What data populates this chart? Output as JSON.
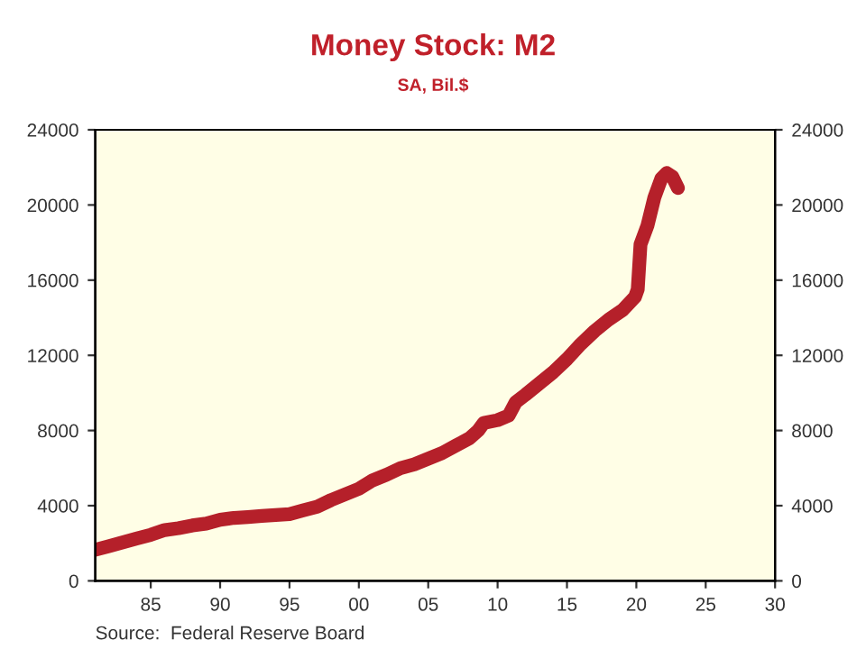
{
  "chart_data": {
    "type": "line",
    "title": "Money Stock: M2",
    "subtitle": "SA, Bil.$",
    "x": [
      1981,
      1982,
      1983,
      1984,
      1985,
      1986,
      1987,
      1988,
      1989,
      1990,
      1991,
      1992,
      1993,
      1994,
      1995,
      1996,
      1997,
      1998,
      1999,
      2000,
      2001,
      2002,
      2003,
      2004,
      2005,
      2006,
      2007,
      2008,
      2008.6,
      2009,
      2010,
      2010.8,
      2011.3,
      2012,
      2013,
      2014,
      2015,
      2016,
      2017,
      2018,
      2019,
      2019.9,
      2020.1,
      2020.3,
      2020.8,
      2021.3,
      2021.8,
      2022.2,
      2022.6,
      2023.0
    ],
    "series": [
      {
        "color": "#b5202a",
        "values": [
          1650,
          1850,
          2050,
          2250,
          2450,
          2700,
          2800,
          2950,
          3050,
          3250,
          3350,
          3400,
          3450,
          3500,
          3550,
          3750,
          3950,
          4300,
          4600,
          4900,
          5350,
          5650,
          6000,
          6200,
          6500,
          6800,
          7200,
          7600,
          8000,
          8400,
          8550,
          8800,
          9500,
          9900,
          10500,
          11100,
          11800,
          12600,
          13300,
          13900,
          14400,
          15100,
          15500,
          17900,
          18900,
          20400,
          21400,
          21700,
          21500,
          20900
        ]
      }
    ],
    "xlim": [
      1981,
      2030
    ],
    "ylim": [
      0,
      24000
    ],
    "xticks": [
      {
        "value": 1985,
        "label": "85"
      },
      {
        "value": 1990,
        "label": "90"
      },
      {
        "value": 1995,
        "label": "95"
      },
      {
        "value": 2000,
        "label": "00"
      },
      {
        "value": 2005,
        "label": "05"
      },
      {
        "value": 2010,
        "label": "10"
      },
      {
        "value": 2015,
        "label": "15"
      },
      {
        "value": 2020,
        "label": "20"
      },
      {
        "value": 2025,
        "label": "25"
      },
      {
        "value": 2030,
        "label": "30"
      }
    ],
    "yticks": [
      0,
      4000,
      8000,
      12000,
      16000,
      20000,
      24000
    ],
    "y2lim": [
      0,
      24000
    ],
    "y2ticks": [
      0,
      4000,
      8000,
      12000,
      16000,
      20000,
      24000
    ],
    "grid": false,
    "legend": false,
    "marker": "none",
    "line_style": "solid",
    "annotations": [
      "Source:  Federal Reserve Board"
    ]
  }
}
